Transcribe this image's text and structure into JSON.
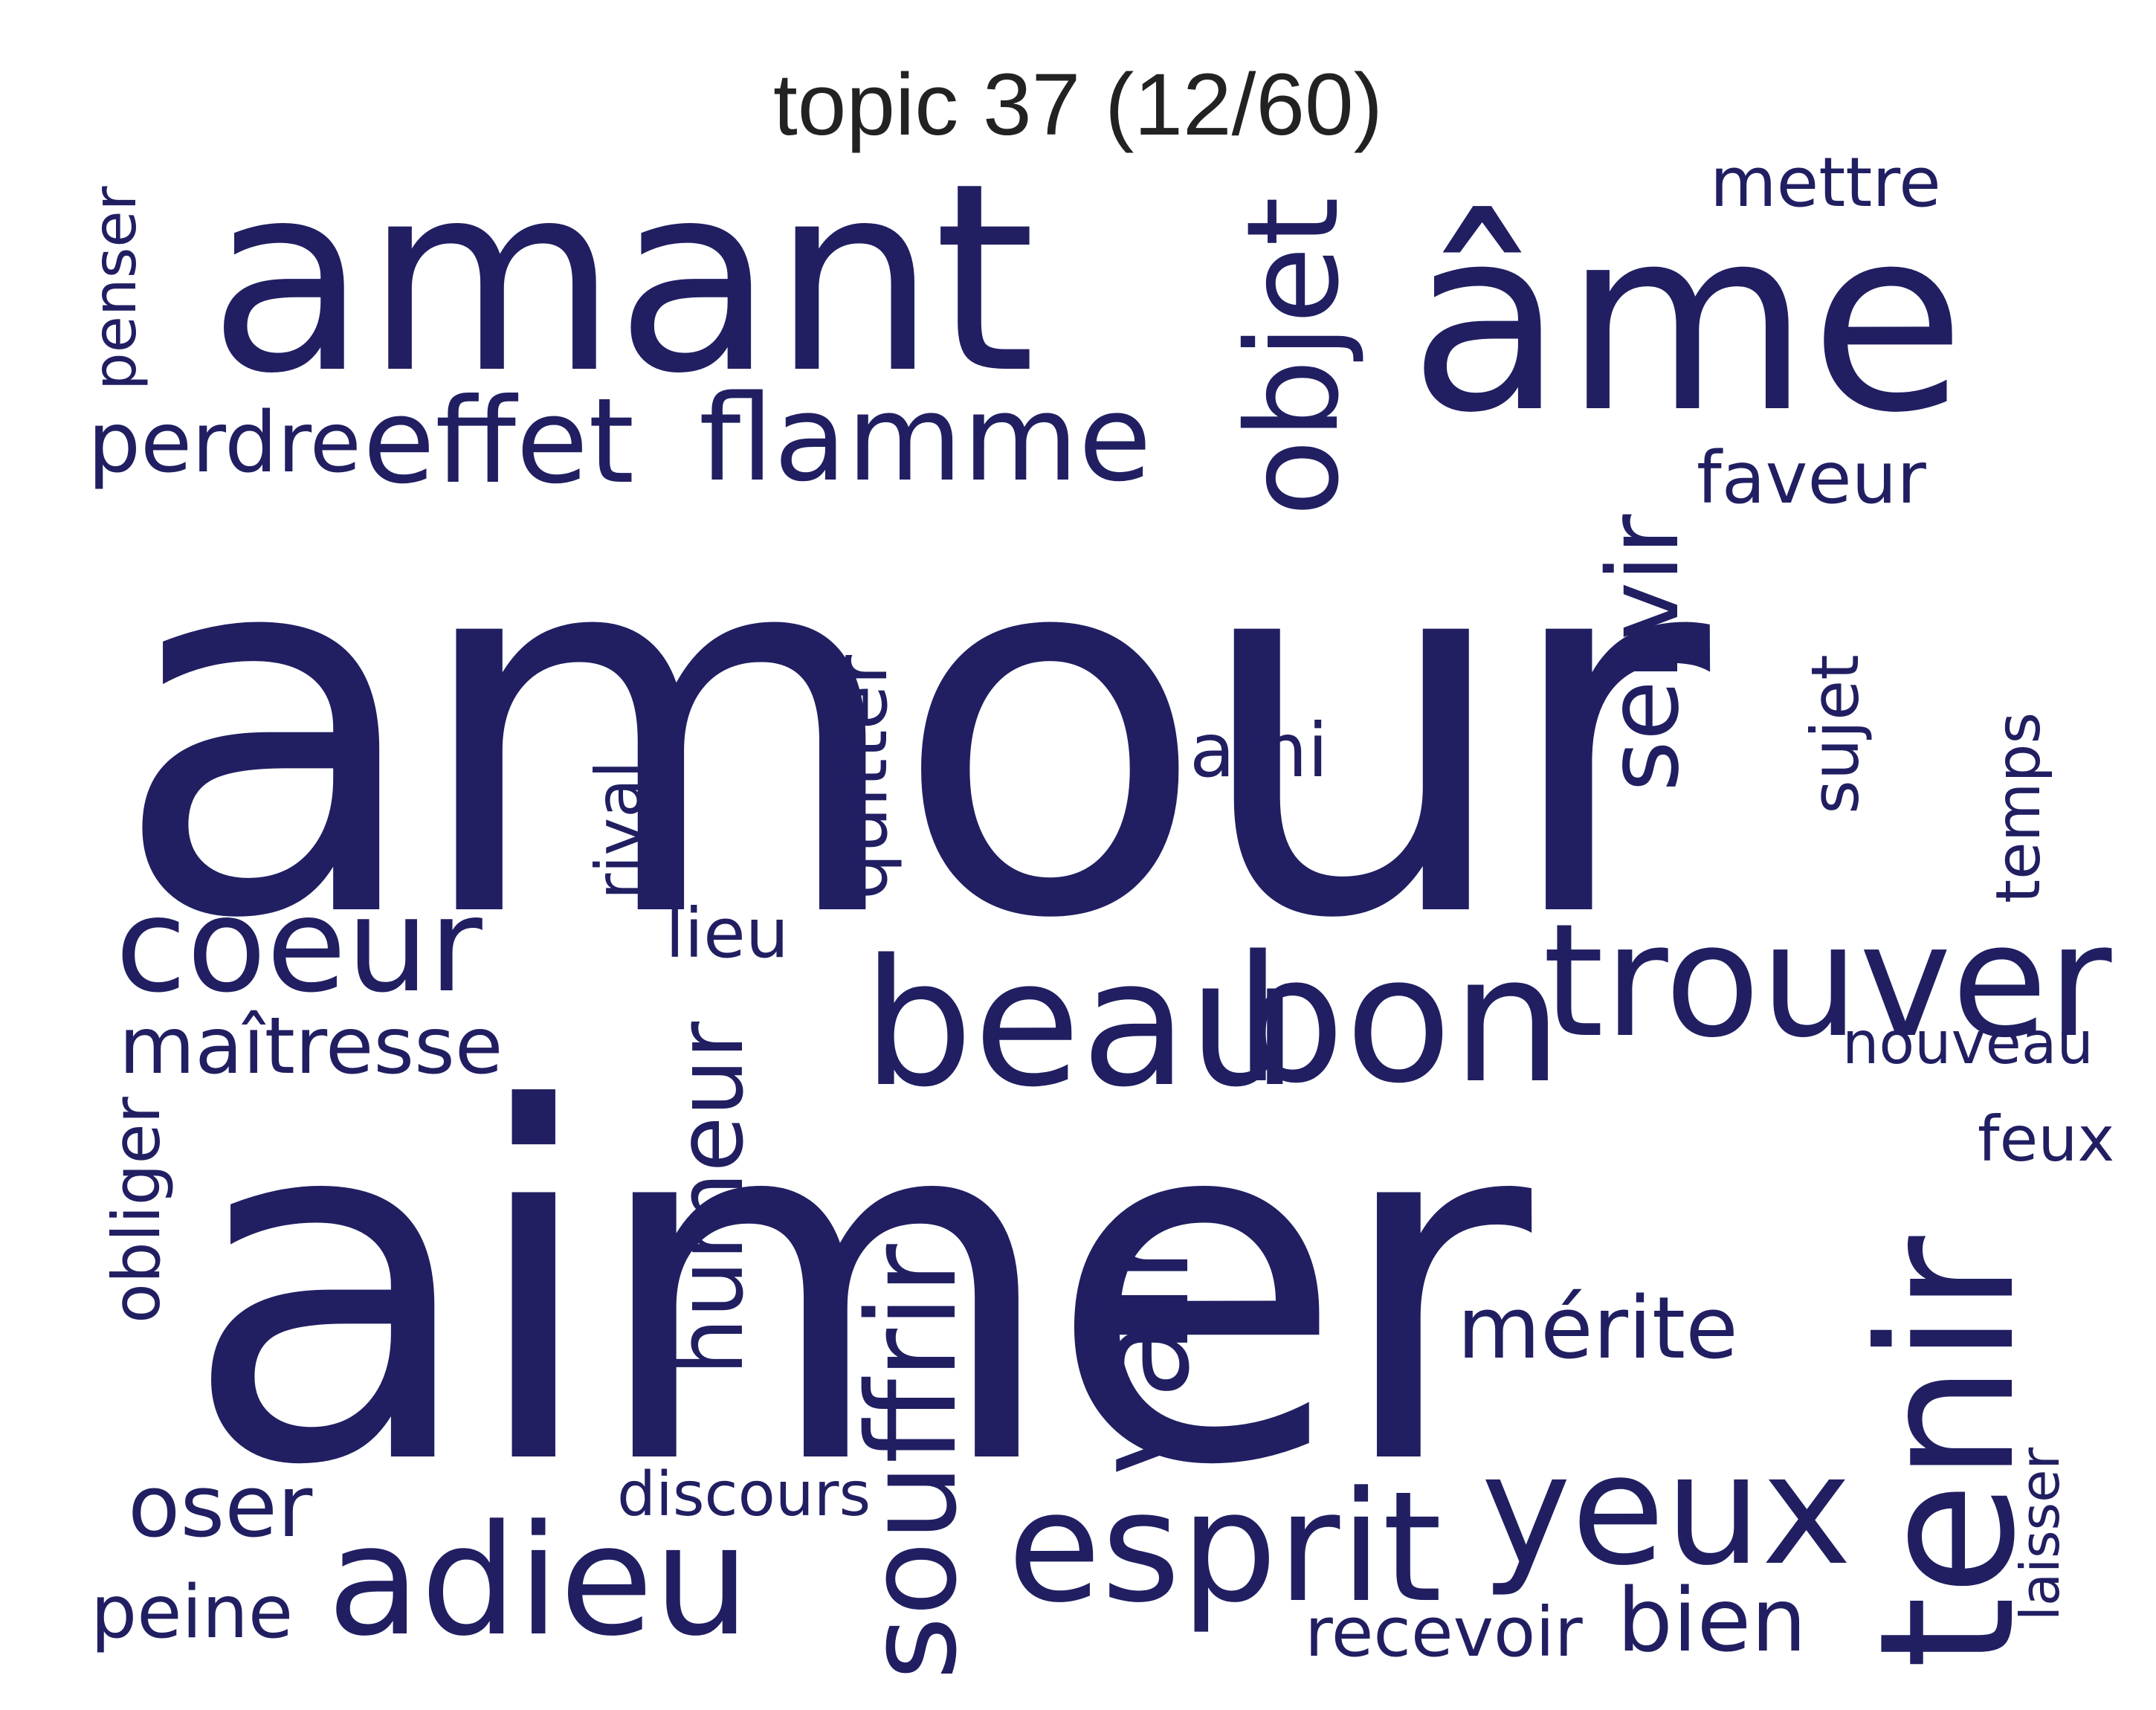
{
  "title": "topic 37 (12/60)",
  "colors": {
    "words": "#211f62",
    "title": "#222222",
    "background": "#ffffff"
  },
  "words": {
    "amour": "amour",
    "aimer": "aimer",
    "amant": "amant",
    "ame": "âme",
    "objet": "objet",
    "mettre": "mettre",
    "penser": "penser",
    "perdre": "perdre",
    "effet": "effet",
    "flamme": "flamme",
    "faveur": "faveur",
    "servir": "servir",
    "sujet": "sujet",
    "temps": "temps",
    "ami": "ami",
    "rival": "rival",
    "quitter": "quitter",
    "coeur": "coeur",
    "lieu": "lieu",
    "beau": "beau",
    "bon": "bon",
    "trouver": "trouver",
    "maitresse": "maîtresse",
    "nouveau": "nouveau",
    "obliger": "obliger",
    "humeur": "humeur",
    "feux": "feux",
    "vain": "vain",
    "merite": "mérite",
    "souffrir": "souffrir",
    "tenir": "tenir",
    "oser": "oser",
    "discours": "discours",
    "adieu": "adieu",
    "esprit": "esprit",
    "yeux": "yeux",
    "laisser": "laisser",
    "peine": "peine",
    "recevoir": "recevoir",
    "bien": "bien"
  }
}
